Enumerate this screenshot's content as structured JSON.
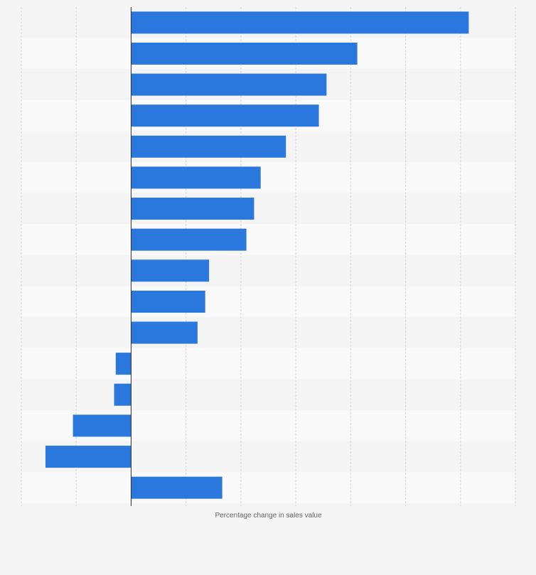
{
  "chart_data": {
    "type": "bar",
    "orientation": "horizontal",
    "xlabel": "Percentage change in sales value",
    "ylabel": "",
    "xlim": [
      -20,
      70
    ],
    "categories": [
      "",
      "",
      "",
      "",
      "",
      "",
      "",
      "",
      "",
      "",
      "",
      "",
      "",
      "",
      "",
      ""
    ],
    "values": [
      61.5,
      41.2,
      35.6,
      34.2,
      28.2,
      23.6,
      22.4,
      21.0,
      14.2,
      13.5,
      12.1,
      -2.8,
      -3.1,
      -10.6,
      -15.6,
      16.6
    ],
    "grid": true,
    "colors": {
      "bar": "#2a78dd",
      "axis": "#333333",
      "grid": "#d8d8d8",
      "band_light": "#f9f9f9",
      "band_dark": "#f4f4f5"
    }
  }
}
